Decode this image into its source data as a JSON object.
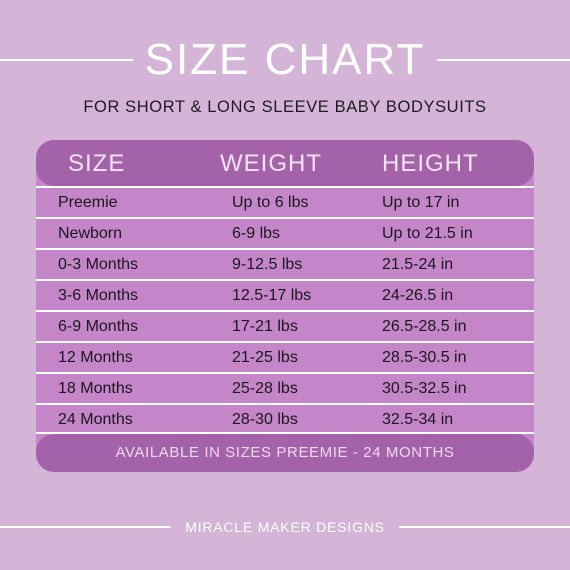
{
  "title": "SIZE CHART",
  "subtitle": "FOR SHORT & LONG SLEEVE BABY BODYSUITS",
  "table": {
    "headers": [
      "SIZE",
      "WEIGHT",
      "HEIGHT"
    ],
    "rows": [
      [
        "Preemie",
        "Up to 6 lbs",
        "Up to 17 in"
      ],
      [
        "Newborn",
        "6-9 lbs",
        "Up to 21.5 in"
      ],
      [
        "0-3 Months",
        "9-12.5 lbs",
        "21.5-24 in"
      ],
      [
        "3-6 Months",
        "12.5-17 lbs",
        "24-26.5 in"
      ],
      [
        "6-9 Months",
        "17-21 lbs",
        "26.5-28.5 in"
      ],
      [
        "12 Months",
        "21-25 lbs",
        "28.5-30.5 in"
      ],
      [
        "18 Months",
        "25-28 lbs",
        "30.5-32.5 in"
      ],
      [
        "24 Months",
        "28-30 lbs",
        "32.5-34 in"
      ]
    ],
    "footnote": "AVAILABLE IN SIZES PREEMIE - 24 MONTHS"
  },
  "brand": "MIRACLE MAKER DESIGNS",
  "colors": {
    "background": "#d4b5d8",
    "header": "#a462a9",
    "rows": "#c486c8",
    "text": "#1c1620",
    "accent_text": "#ffffff"
  }
}
